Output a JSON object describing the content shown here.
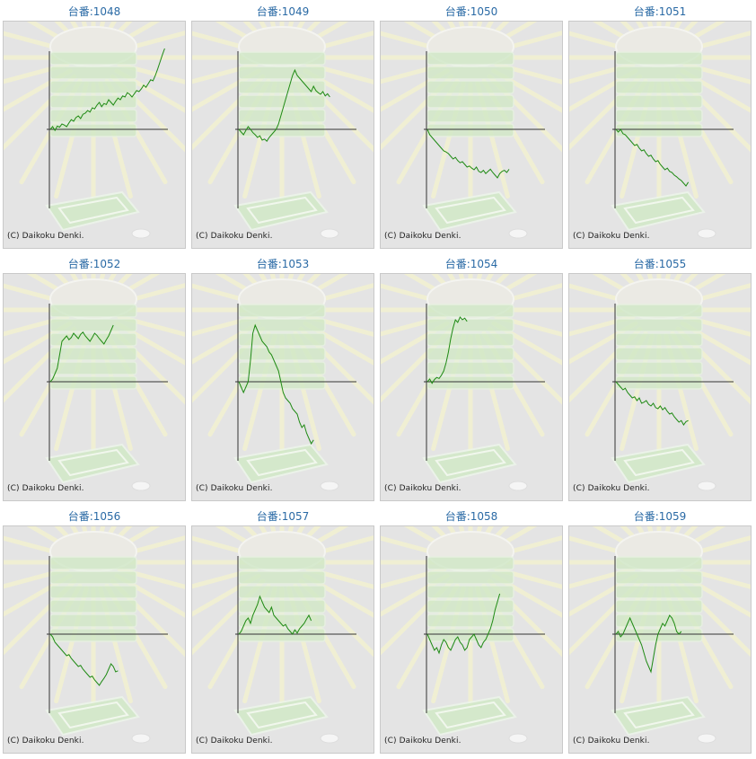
{
  "colors": {
    "title": "#2a6aa5",
    "line": "#1f8a14",
    "axis": "#333333",
    "panel": "#e4e4e4",
    "watermark_green": "#cfe9c4",
    "watermark_ray": "#f2f1d2"
  },
  "watermark_icon": "pachinko-machine-illustration",
  "chart_data": [
    {
      "type": "line",
      "title": "台番:1048",
      "copyright": "(C) Daikoku Denki.",
      "values": [
        0,
        0.05,
        -0.02,
        0.06,
        0.04,
        0.1,
        0.08,
        0.05,
        0.12,
        0.18,
        0.15,
        0.22,
        0.25,
        0.2,
        0.28,
        0.3,
        0.35,
        0.32,
        0.4,
        0.38,
        0.45,
        0.5,
        0.42,
        0.48,
        0.46,
        0.55,
        0.5,
        0.45,
        0.52,
        0.58,
        0.55,
        0.62,
        0.6,
        0.68,
        0.65,
        0.6,
        0.66,
        0.72,
        0.7,
        0.75,
        0.82,
        0.78,
        0.85,
        0.92,
        0.9,
        1.0,
        1.12,
        1.25,
        1.38,
        1.5
      ]
    },
    {
      "type": "line",
      "title": "台番:1049",
      "copyright": "(C) Daikoku Denki.",
      "values": [
        0,
        -0.05,
        -0.1,
        -0.02,
        0.05,
        0.0,
        -0.06,
        -0.1,
        -0.15,
        -0.12,
        -0.2,
        -0.18,
        -0.22,
        -0.15,
        -0.1,
        -0.05,
        0.0,
        0.1,
        0.25,
        0.4,
        0.55,
        0.7,
        0.85,
        1.0,
        1.1,
        1.0,
        0.95,
        0.9,
        0.85,
        0.8,
        0.75,
        0.7,
        0.8,
        0.72,
        0.68,
        0.65,
        0.7,
        0.62,
        0.66,
        0.6
      ]
    },
    {
      "type": "line",
      "title": "台番:1050",
      "copyright": "(C) Daikoku Denki.",
      "values": [
        0,
        -0.1,
        -0.15,
        -0.2,
        -0.25,
        -0.3,
        -0.35,
        -0.4,
        -0.42,
        -0.45,
        -0.5,
        -0.55,
        -0.52,
        -0.58,
        -0.62,
        -0.6,
        -0.65,
        -0.7,
        -0.68,
        -0.72,
        -0.75,
        -0.7,
        -0.78,
        -0.8,
        -0.76,
        -0.82,
        -0.78,
        -0.74,
        -0.8,
        -0.85,
        -0.9,
        -0.82,
        -0.78,
        -0.76,
        -0.8,
        -0.74
      ]
    },
    {
      "type": "line",
      "title": "台番:1051",
      "copyright": "(C) Daikoku Denki.",
      "values": [
        0,
        -0.05,
        0.0,
        -0.08,
        -0.1,
        -0.15,
        -0.2,
        -0.25,
        -0.3,
        -0.28,
        -0.35,
        -0.4,
        -0.38,
        -0.45,
        -0.5,
        -0.48,
        -0.55,
        -0.6,
        -0.58,
        -0.65,
        -0.7,
        -0.75,
        -0.72,
        -0.78,
        -0.8,
        -0.85,
        -0.88,
        -0.92,
        -0.95,
        -1.0,
        -1.05,
        -0.98
      ]
    },
    {
      "type": "line",
      "title": "台番:1052",
      "copyright": "(C) Daikoku Denki.",
      "values": [
        0,
        0.05,
        0.15,
        0.25,
        0.5,
        0.75,
        0.8,
        0.85,
        0.78,
        0.82,
        0.9,
        0.85,
        0.8,
        0.88,
        0.92,
        0.85,
        0.8,
        0.75,
        0.82,
        0.9,
        0.86,
        0.8,
        0.75,
        0.7,
        0.78,
        0.85,
        0.95,
        1.05
      ]
    },
    {
      "type": "line",
      "title": "台番:1053",
      "copyright": "(C) Daikoku Denki.",
      "values": [
        0,
        -0.1,
        -0.2,
        -0.1,
        0.0,
        0.4,
        0.9,
        1.05,
        0.95,
        0.85,
        0.75,
        0.7,
        0.65,
        0.55,
        0.5,
        0.4,
        0.3,
        0.2,
        0.0,
        -0.2,
        -0.3,
        -0.35,
        -0.4,
        -0.5,
        -0.55,
        -0.6,
        -0.75,
        -0.85,
        -0.8,
        -0.95,
        -1.05,
        -1.15,
        -1.08
      ]
    },
    {
      "type": "line",
      "title": "台番:1054",
      "copyright": "(C) Daikoku Denki.",
      "values": [
        0,
        0.05,
        -0.03,
        0.04,
        0.08,
        0.06,
        0.12,
        0.2,
        0.35,
        0.55,
        0.8,
        1.0,
        1.15,
        1.1,
        1.2,
        1.15,
        1.18,
        1.12
      ]
    },
    {
      "type": "line",
      "title": "台番:1055",
      "copyright": "(C) Daikoku Denki.",
      "values": [
        0,
        -0.05,
        -0.1,
        -0.15,
        -0.12,
        -0.2,
        -0.25,
        -0.3,
        -0.28,
        -0.35,
        -0.3,
        -0.4,
        -0.38,
        -0.35,
        -0.42,
        -0.45,
        -0.4,
        -0.48,
        -0.5,
        -0.45,
        -0.52,
        -0.48,
        -0.55,
        -0.6,
        -0.58,
        -0.65,
        -0.7,
        -0.75,
        -0.72,
        -0.8,
        -0.74,
        -0.72
      ]
    },
    {
      "type": "line",
      "title": "台番:1056",
      "copyright": "(C) Daikoku Denki.",
      "values": [
        0,
        -0.05,
        -0.15,
        -0.2,
        -0.25,
        -0.3,
        -0.35,
        -0.4,
        -0.38,
        -0.45,
        -0.5,
        -0.55,
        -0.6,
        -0.58,
        -0.65,
        -0.7,
        -0.75,
        -0.8,
        -0.78,
        -0.85,
        -0.9,
        -0.95,
        -0.88,
        -0.82,
        -0.75,
        -0.65,
        -0.55,
        -0.6,
        -0.7,
        -0.68
      ]
    },
    {
      "type": "line",
      "title": "台番:1057",
      "copyright": "(C) Daikoku Denki.",
      "values": [
        0,
        0.05,
        0.15,
        0.25,
        0.3,
        0.2,
        0.35,
        0.45,
        0.55,
        0.7,
        0.6,
        0.5,
        0.45,
        0.4,
        0.5,
        0.35,
        0.3,
        0.25,
        0.2,
        0.15,
        0.18,
        0.1,
        0.05,
        0.0,
        0.08,
        0.02,
        0.1,
        0.15,
        0.2,
        0.28,
        0.35,
        0.25
      ]
    },
    {
      "type": "line",
      "title": "台番:1058",
      "copyright": "(C) Daikoku Denki.",
      "values": [
        0,
        -0.1,
        -0.2,
        -0.3,
        -0.25,
        -0.35,
        -0.2,
        -0.1,
        -0.15,
        -0.25,
        -0.3,
        -0.2,
        -0.1,
        -0.05,
        -0.15,
        -0.2,
        -0.3,
        -0.25,
        -0.1,
        -0.05,
        0.0,
        -0.1,
        -0.2,
        -0.25,
        -0.15,
        -0.1,
        0.0,
        0.1,
        0.25,
        0.45,
        0.6,
        0.75
      ]
    },
    {
      "type": "line",
      "title": "台番:1059",
      "copyright": "(C) Daikoku Denki.",
      "values": [
        0,
        0.05,
        -0.05,
        0.0,
        0.1,
        0.2,
        0.3,
        0.2,
        0.1,
        0.0,
        -0.1,
        -0.2,
        -0.35,
        -0.5,
        -0.6,
        -0.7,
        -0.45,
        -0.2,
        0.0,
        0.1,
        0.2,
        0.15,
        0.25,
        0.35,
        0.3,
        0.2,
        0.05,
        0.0,
        0.05
      ]
    }
  ]
}
